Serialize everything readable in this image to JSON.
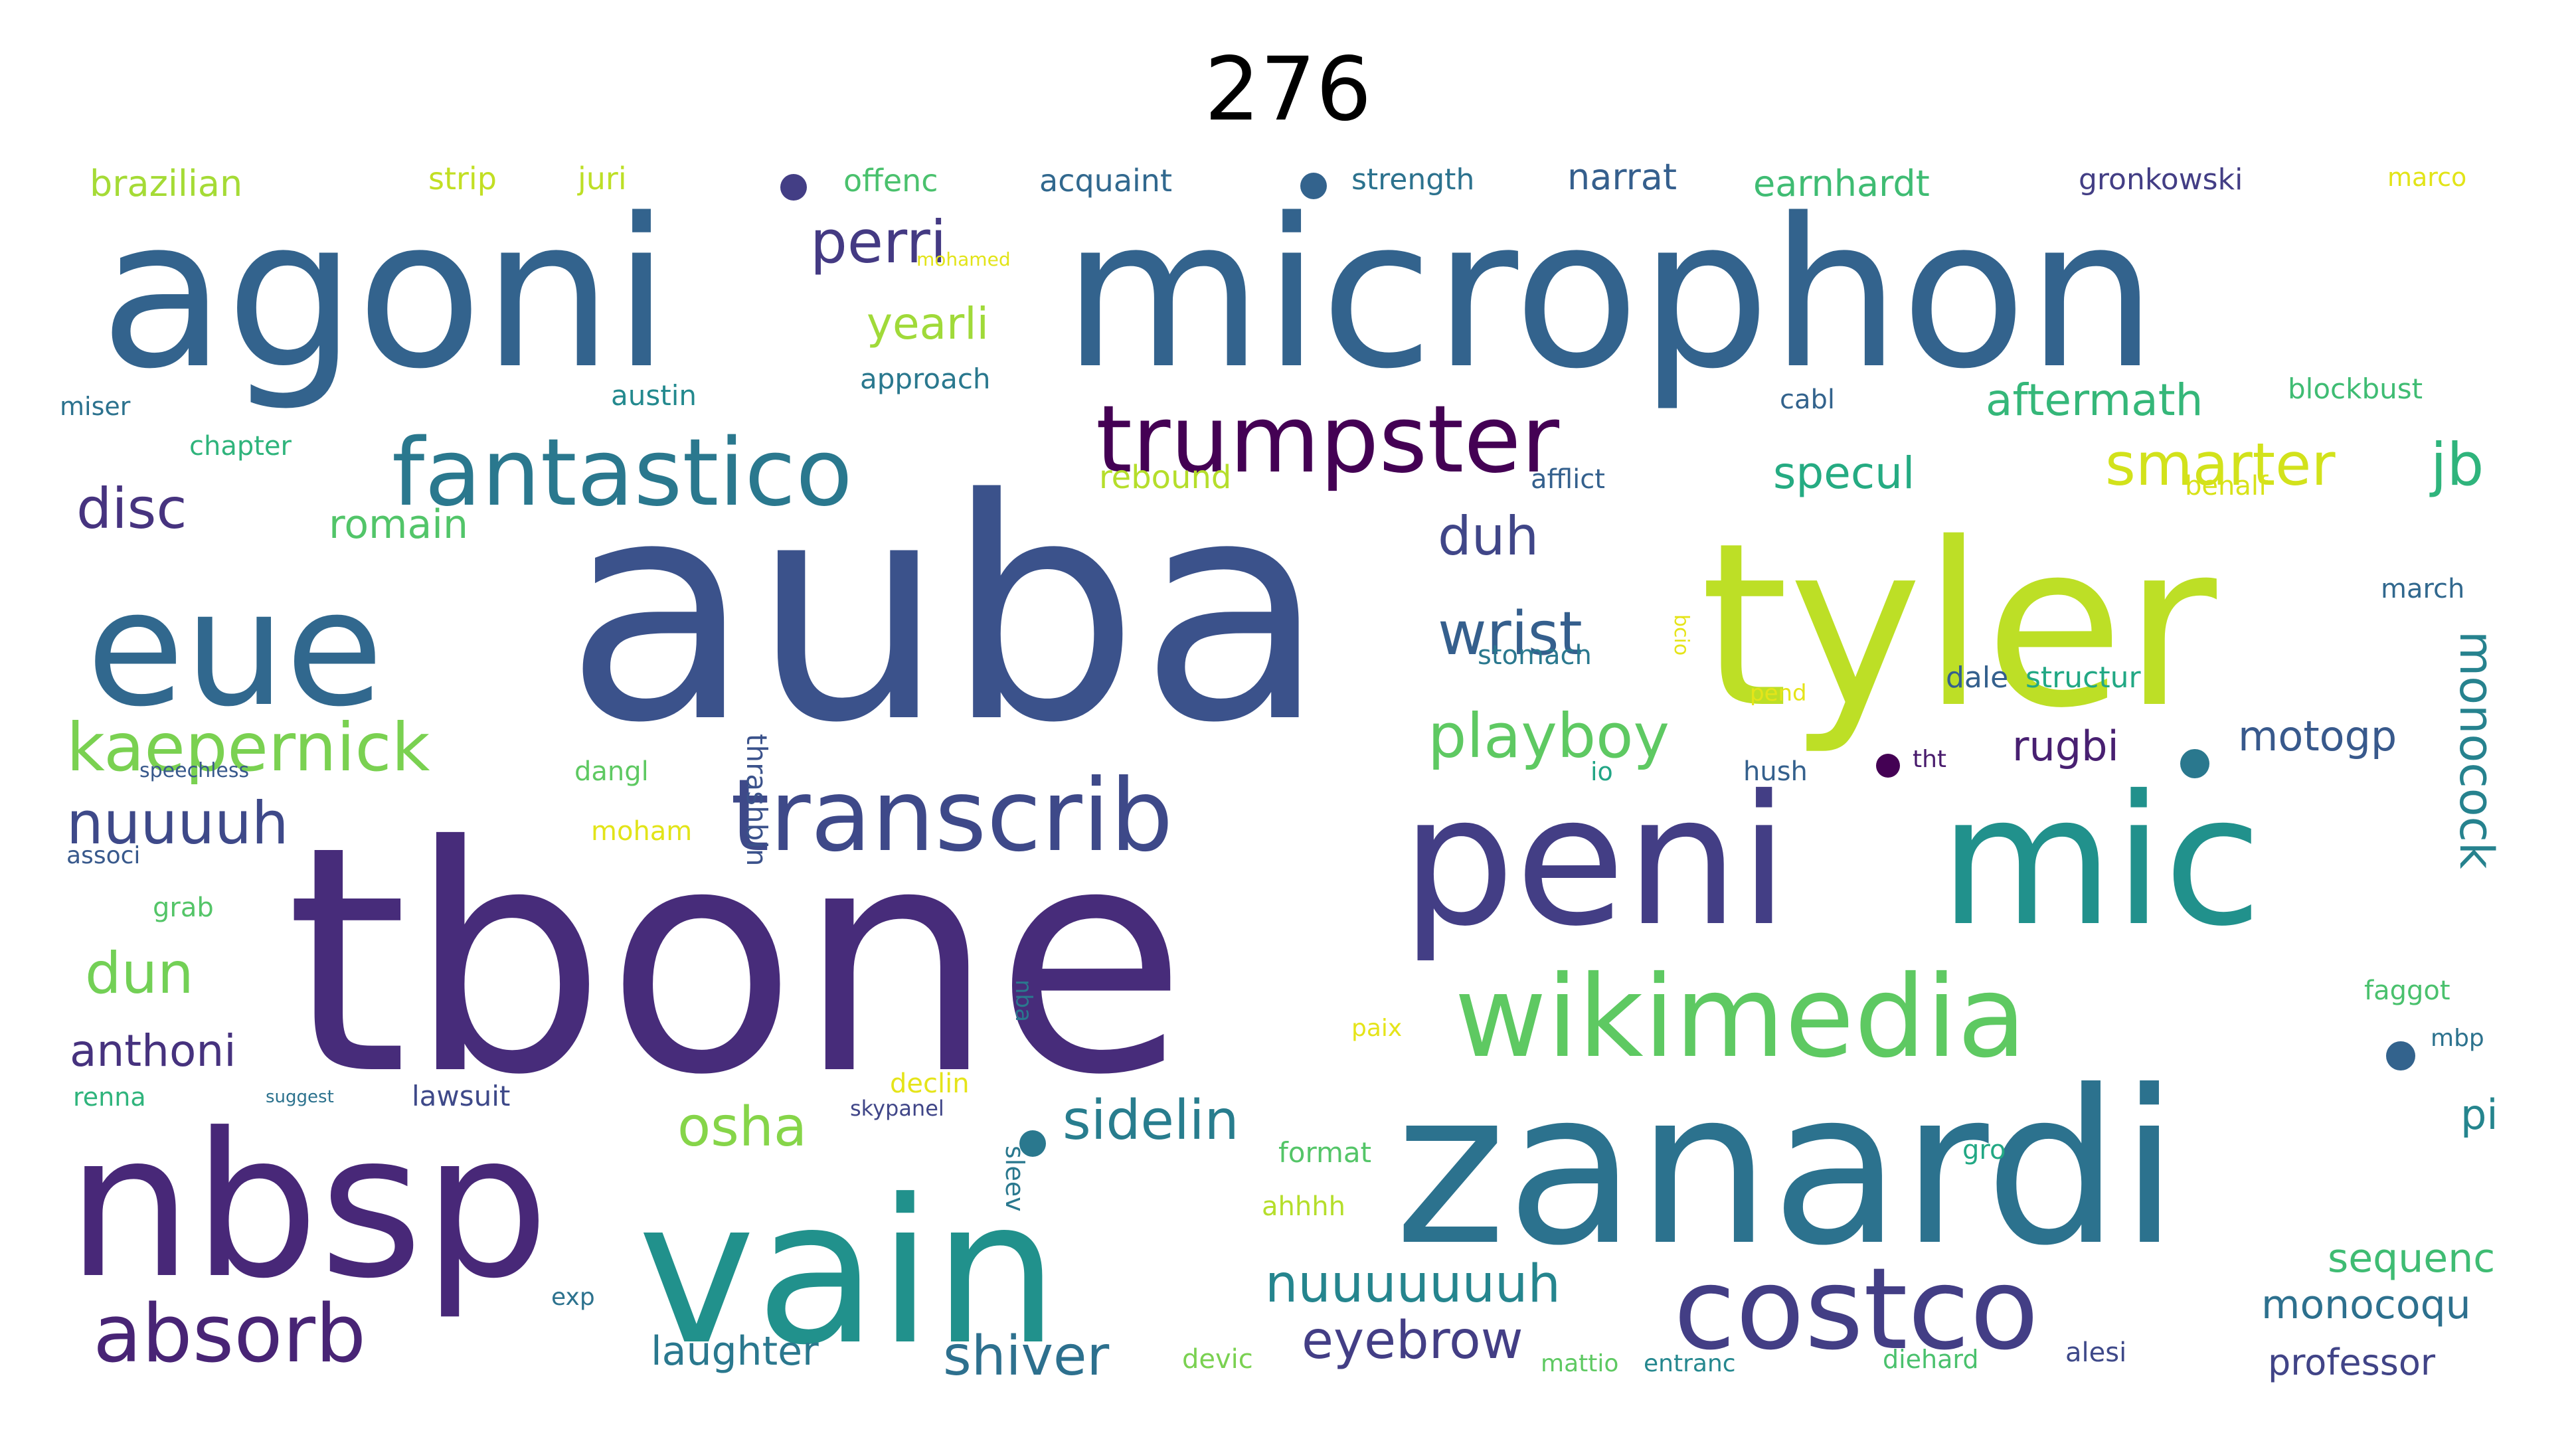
{
  "title": "276",
  "words": [
    {
      "text": "tbone",
      "color": "#472c7a"
    },
    {
      "text": "auba",
      "color": "#3b528b"
    },
    {
      "text": "microphon",
      "color": "#33638d"
    },
    {
      "text": "agoni",
      "color": "#33638d"
    },
    {
      "text": "tyler",
      "color": "#bddf26"
    },
    {
      "text": "zanardi",
      "color": "#2c728e"
    },
    {
      "text": "peni",
      "color": "#433e85"
    },
    {
      "text": "mic",
      "color": "#21918c"
    },
    {
      "text": "vain",
      "color": "#21918c"
    },
    {
      "text": "nbsp",
      "color": "#482878"
    },
    {
      "text": "eue",
      "color": "#31688e"
    },
    {
      "text": "wikimedia",
      "color": "#5ec962"
    },
    {
      "text": "costco",
      "color": "#433e85"
    },
    {
      "text": "transcrib",
      "color": "#3e4989"
    },
    {
      "text": "fantastico",
      "color": "#2a788e"
    },
    {
      "text": "trumpster",
      "color": "#440154"
    },
    {
      "text": "absorb",
      "color": "#482475"
    },
    {
      "text": "kaepernick",
      "color": "#7ad151"
    },
    {
      "text": "nuuuuh",
      "color": "#3e4989"
    },
    {
      "text": "wrist",
      "color": "#355f8d"
    },
    {
      "text": "playboy",
      "color": "#5ec962"
    },
    {
      "text": "smarter",
      "color": "#d2e21b"
    },
    {
      "text": "jb",
      "color": "#2fb47c"
    },
    {
      "text": "perri",
      "color": "#443a83"
    },
    {
      "text": "duh",
      "color": "#404688"
    },
    {
      "text": "disc",
      "color": "#46337f"
    },
    {
      "text": "osha",
      "color": "#86d549"
    },
    {
      "text": "sidelin",
      "color": "#287d8e"
    },
    {
      "text": "nuuuuuuuh",
      "color": "#25858e"
    },
    {
      "text": "eyebrow",
      "color": "#433e85"
    },
    {
      "text": "shiver",
      "color": "#2d708e"
    },
    {
      "text": "dun",
      "color": "#73d056"
    },
    {
      "text": "anthoni",
      "color": "#46327e"
    },
    {
      "text": "yearli",
      "color": "#a0da39"
    },
    {
      "text": "aftermath",
      "color": "#35b779"
    },
    {
      "text": "specul",
      "color": "#25ab82"
    },
    {
      "text": "monocock",
      "color": "#26828e"
    },
    {
      "text": "motogp",
      "color": "#38598c"
    },
    {
      "text": "rugbi",
      "color": "#482071"
    },
    {
      "text": "romain",
      "color": "#52c569"
    },
    {
      "text": "laughter",
      "color": "#2a788e"
    },
    {
      "text": "sequenc",
      "color": "#3fbc73"
    },
    {
      "text": "monocoqu",
      "color": "#2d708e"
    },
    {
      "text": "professor",
      "color": "#414487"
    },
    {
      "text": "earnhardt",
      "color": "#3fbc73"
    },
    {
      "text": "narrat",
      "color": "#355f8d"
    },
    {
      "text": "brazilian",
      "color": "#a5db36"
    },
    {
      "text": "strip",
      "color": "#c2df23"
    },
    {
      "text": "juri",
      "color": "#bddf26"
    },
    {
      "text": "offenc",
      "color": "#4ac16d"
    },
    {
      "text": "acquaint",
      "color": "#31688e"
    },
    {
      "text": "strength",
      "color": "#2c728e"
    },
    {
      "text": "gronkowski",
      "color": "#433e85"
    },
    {
      "text": "marco",
      "color": "#e2e418"
    },
    {
      "text": "blockbust",
      "color": "#3fbc73"
    },
    {
      "text": "cabl",
      "color": "#33638d"
    },
    {
      "text": "approach",
      "color": "#2a788e"
    },
    {
      "text": "austin",
      "color": "#23898e"
    },
    {
      "text": "miser",
      "color": "#2c728e"
    },
    {
      "text": "chapter",
      "color": "#2fb47c"
    },
    {
      "text": "rebound",
      "color": "#b5de2b"
    },
    {
      "text": "afflict",
      "color": "#34608d"
    },
    {
      "text": "behalf",
      "color": "#d8e219"
    },
    {
      "text": "march",
      "color": "#31688e"
    },
    {
      "text": "stomach",
      "color": "#2a788e"
    },
    {
      "text": "dale",
      "color": "#34608d"
    },
    {
      "text": "structur",
      "color": "#22a884"
    },
    {
      "text": "thrashbin",
      "color": "#3b528b"
    },
    {
      "text": "pend",
      "color": "#e5e419"
    },
    {
      "text": "bcio",
      "color": "#e5e419"
    },
    {
      "text": "speechless",
      "color": "#38598c"
    },
    {
      "text": "dangl",
      "color": "#5ec962"
    },
    {
      "text": "io",
      "color": "#21a585"
    },
    {
      "text": "hush",
      "color": "#34608d"
    },
    {
      "text": "tht",
      "color": "#481a6c"
    },
    {
      "text": "moham",
      "color": "#e2e418"
    },
    {
      "text": "mohamed",
      "color": "#e2e418"
    },
    {
      "text": "associ",
      "color": "#38598c"
    },
    {
      "text": "grab",
      "color": "#54c568"
    },
    {
      "text": "faggot",
      "color": "#4ac16d"
    },
    {
      "text": "mbp",
      "color": "#2c728e"
    },
    {
      "text": "paix",
      "color": "#e5e419"
    },
    {
      "text": "nba",
      "color": "#2a788e"
    },
    {
      "text": "renna",
      "color": "#2fb47c"
    },
    {
      "text": "suggest",
      "color": "#2c728e"
    },
    {
      "text": "lawsuit",
      "color": "#3e4989"
    },
    {
      "text": "declin",
      "color": "#e5e419"
    },
    {
      "text": "skypanel",
      "color": "#404688"
    },
    {
      "text": "format",
      "color": "#54c568"
    },
    {
      "text": "gro",
      "color": "#22a884"
    },
    {
      "text": "pi",
      "color": "#25858e"
    },
    {
      "text": "sleev",
      "color": "#2a788e"
    },
    {
      "text": "ahhhh",
      "color": "#b5de2b"
    },
    {
      "text": "exp",
      "color": "#2c728e"
    },
    {
      "text": "devic",
      "color": "#7ad151"
    },
    {
      "text": "mattio",
      "color": "#5ec962"
    },
    {
      "text": "entranc",
      "color": "#24878e"
    },
    {
      "text": "diehard",
      "color": "#4ac16d"
    },
    {
      "text": "alesi",
      "color": "#3e4989"
    }
  ]
}
